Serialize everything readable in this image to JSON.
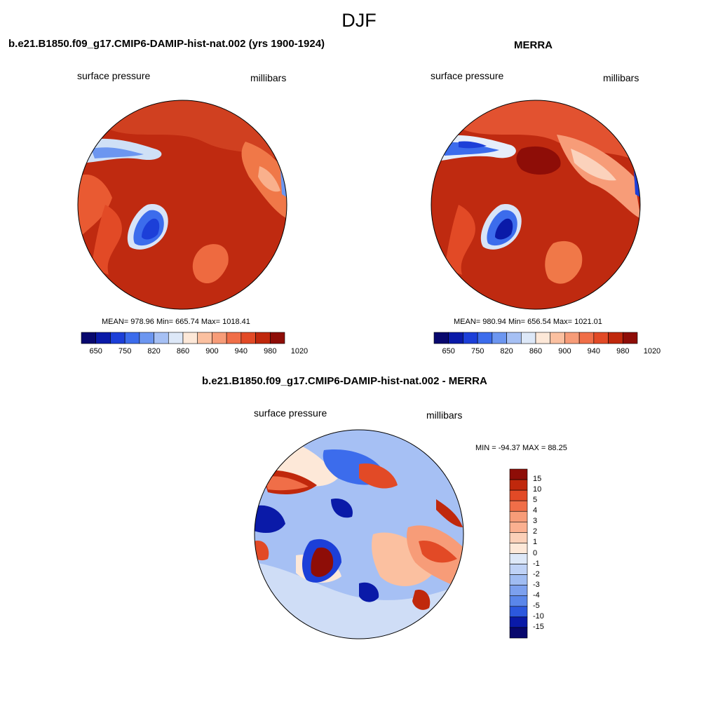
{
  "season": "DJF",
  "colors": {
    "seq_scale": [
      "#08086e",
      "#0a1aa8",
      "#1c3fd8",
      "#3c6cec",
      "#6c96f0",
      "#a6c0f4",
      "#dde8f8",
      "#fde8d8",
      "#fbc0a0",
      "#f79c78",
      "#f06e48",
      "#e24a26",
      "#c0280c",
      "#8e0d07"
    ],
    "diff_scale": [
      "#08086e",
      "#0a1aa8",
      "#1c3fd8",
      "#3c6cec",
      "#6c96f0",
      "#a6c0f4",
      "#dde8f8",
      "#fde8d8",
      "#fbc0a0",
      "#f79c78",
      "#f06e48",
      "#e24a26",
      "#c0280c",
      "#8e0d07"
    ]
  },
  "panels": [
    {
      "title": "b.e21.B1850.f09_g17.CMIP6-DAMIP-hist-nat.002 (yrs 1900-1924)",
      "variable": "surface pressure",
      "units": "millibars",
      "stats": "MEAN= 978.96  Min= 665.74  Max= 1018.41",
      "ticks": [
        "650",
        "750",
        "820",
        "860",
        "900",
        "940",
        "980",
        "1020"
      ]
    },
    {
      "title": "MERRA",
      "variable": "surface pressure",
      "units": "millibars",
      "stats": "MEAN= 980.94  Min= 656.54  Max= 1021.01",
      "ticks": [
        "650",
        "750",
        "820",
        "860",
        "900",
        "940",
        "980",
        "1020"
      ]
    }
  ],
  "diff": {
    "title": "b.e21.B1850.f09_g17.CMIP6-DAMIP-hist-nat.002 - MERRA",
    "variable": "surface pressure",
    "units": "millibars",
    "stats": "MIN = -94.37 MAX =  88.25",
    "ticks": [
      "15",
      "10",
      "5",
      "4",
      "3",
      "2",
      "1",
      "0",
      "-1",
      "-2",
      "-3",
      "-4",
      "-5",
      "-10",
      "-15"
    ]
  }
}
